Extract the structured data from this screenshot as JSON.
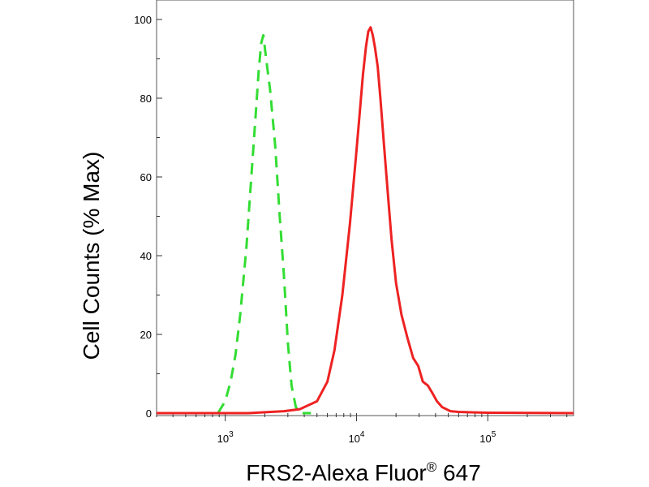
{
  "chart_data": {
    "type": "line",
    "title": "",
    "xlabel": "FRS2-Alexa Fluor",
    "xlabel_sup": "®",
    "xlabel_suffix": " 647",
    "ylabel": "Cell Counts (% Max)",
    "xscale": "log",
    "xlim": [
      300,
      450000
    ],
    "ylim": [
      0,
      100
    ],
    "yticks": [
      0,
      20,
      40,
      60,
      80,
      100
    ],
    "xticks": [
      {
        "value": 1000,
        "base": "10",
        "exp": "3"
      },
      {
        "value": 10000,
        "base": "10",
        "exp": "4"
      },
      {
        "value": 100000,
        "base": "10",
        "exp": "5"
      }
    ],
    "grid": false,
    "series": [
      {
        "color": "#33dd33",
        "style": "dashed",
        "x": [
          880,
          1000,
          1100,
          1200,
          1300,
          1450,
          1580,
          1700,
          1800,
          1880,
          1950,
          2050,
          2200,
          2400,
          2600,
          2800,
          3000,
          3200,
          3450,
          3800,
          4500
        ],
        "y": [
          0,
          3,
          8,
          15,
          25,
          42,
          60,
          75,
          87,
          94,
          96,
          90,
          82,
          68,
          50,
          35,
          18,
          7,
          1.5,
          0,
          0
        ]
      },
      {
        "color": "#ee2222",
        "style": "solid",
        "x": [
          300,
          1500,
          2800,
          3700,
          5000,
          6000,
          6800,
          7800,
          8900,
          9900,
          10500,
          11200,
          11800,
          12300,
          12800,
          13300,
          13800,
          14500,
          15200,
          16200,
          17300,
          18500,
          20000,
          22000,
          24500,
          27000,
          29500,
          32000,
          35000,
          38000,
          41000,
          45000,
          52000,
          60000,
          75000,
          100000,
          450000
        ],
        "y": [
          0,
          0,
          0.5,
          1,
          3,
          8,
          16,
          30,
          48,
          65,
          75,
          86,
          93,
          97,
          98,
          96,
          93,
          88,
          80,
          68,
          56,
          44,
          33,
          25,
          19,
          14,
          12,
          8,
          7,
          5,
          3,
          1.5,
          0.5,
          0.3,
          0.2,
          0.1,
          0
        ]
      }
    ]
  }
}
